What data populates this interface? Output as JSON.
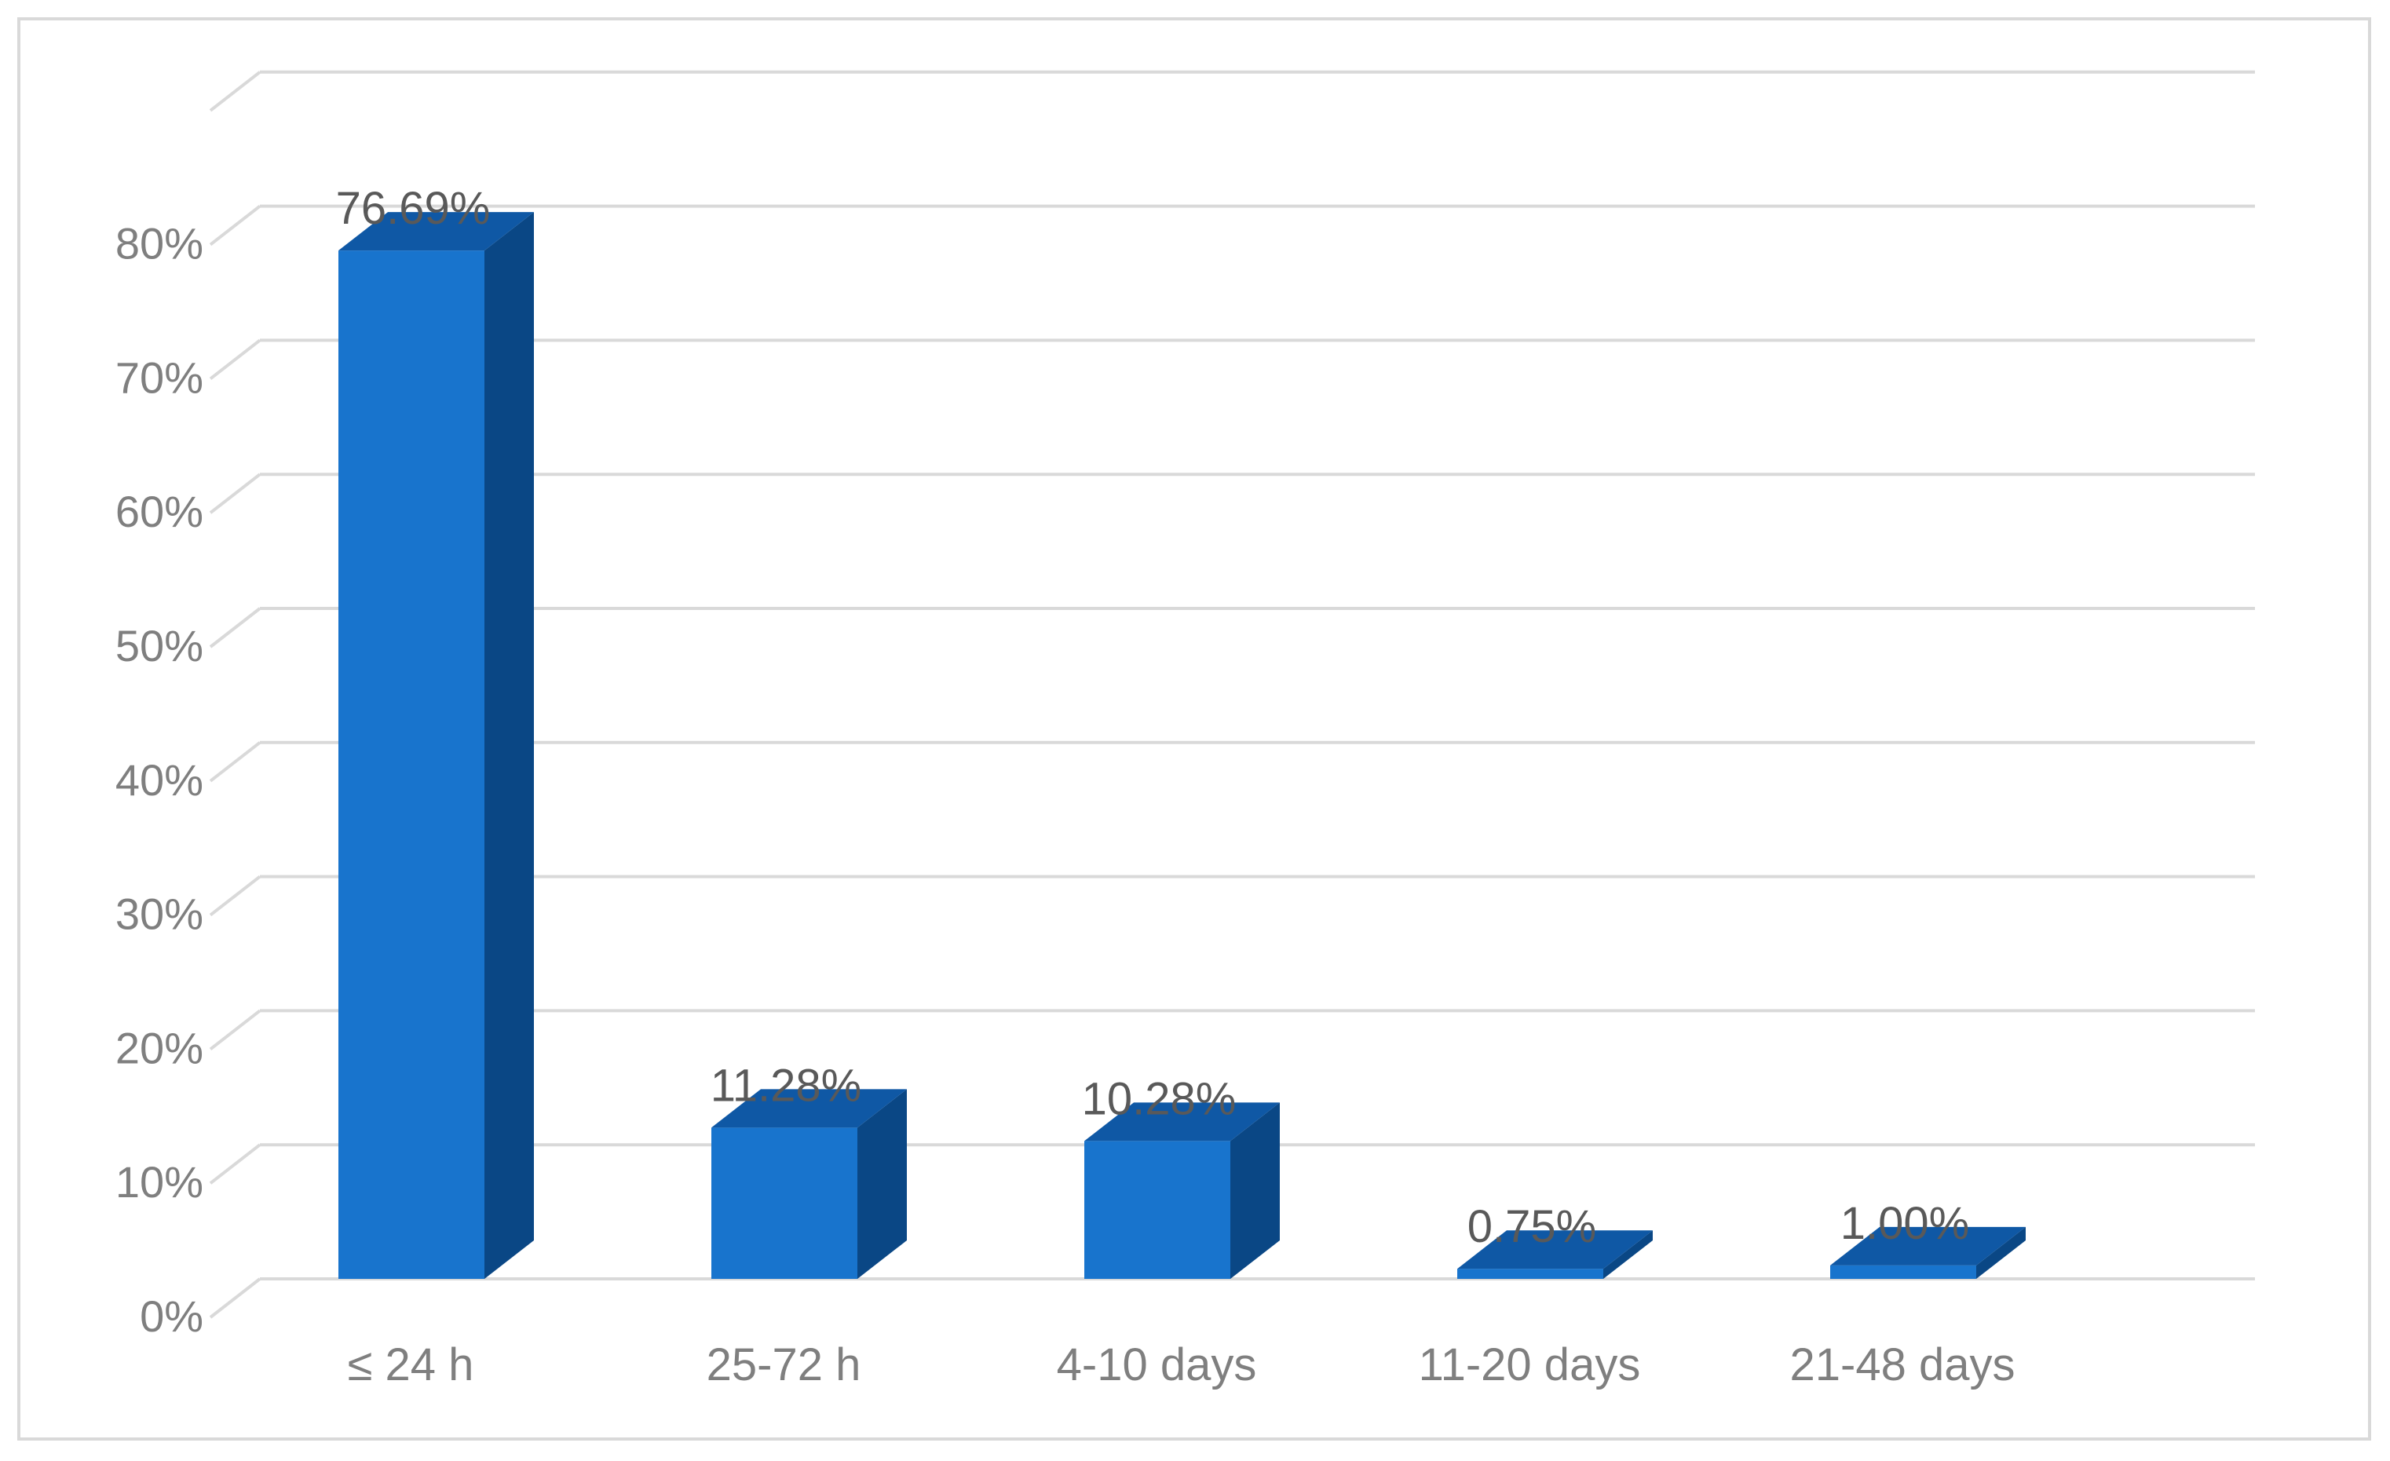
{
  "chart_data": {
    "type": "bar",
    "style": "3d-column",
    "categories": [
      "≤ 24 h",
      "25-72 h",
      "4-10 days",
      "11-20 days",
      "21-48 days"
    ],
    "values": [
      76.69,
      11.28,
      10.28,
      0.75,
      1.0
    ],
    "data_labels": [
      "76.69%",
      "11.28%",
      "10.28%",
      "0.75%",
      "1.00%"
    ],
    "y_ticks": [
      "0%",
      "10%",
      "20%",
      "30%",
      "40%",
      "50%",
      "60%",
      "70%",
      "80%"
    ],
    "ylim": [
      0,
      80
    ],
    "title": "",
    "xlabel": "",
    "ylabel": "",
    "grid": true,
    "legend": "none",
    "colors": {
      "front": "#1874cd",
      "side": "#0a4785",
      "top": "#0f58a5",
      "grid": "#d9d9d9",
      "axis_text": "#7f7f7f",
      "label_text": "#595959",
      "frame": "#d9d9d9"
    }
  }
}
